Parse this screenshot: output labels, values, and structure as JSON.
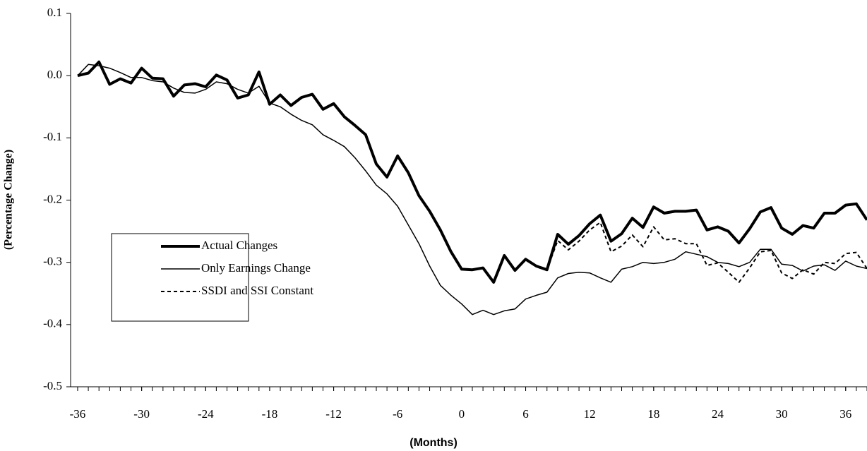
{
  "chart_data": {
    "type": "line",
    "xlabel": "(Months)",
    "ylabel": "(Percentage Change)",
    "x": [
      -36,
      -35,
      -34,
      -33,
      -32,
      -31,
      -30,
      -29,
      -28,
      -27,
      -26,
      -25,
      -24,
      -23,
      -22,
      -21,
      -20,
      -19,
      -18,
      -17,
      -16,
      -15,
      -14,
      -13,
      -12,
      -11,
      -10,
      -9,
      -8,
      -7,
      -6,
      -5,
      -4,
      -3,
      -2,
      -1,
      0,
      1,
      2,
      3,
      4,
      5,
      6,
      7,
      8,
      9,
      10,
      11,
      12,
      13,
      14,
      15,
      16,
      17,
      18,
      19,
      20,
      21,
      22,
      23,
      24,
      25,
      26,
      27,
      28,
      29,
      30,
      31,
      32,
      33,
      34,
      35,
      36,
      37,
      38
    ],
    "series": [
      {
        "name": "Actual Changes",
        "color": "#000000",
        "width": 4,
        "dash": false,
        "values": [
          0.0,
          0.004,
          0.022,
          -0.014,
          -0.005,
          -0.012,
          0.012,
          -0.004,
          -0.005,
          -0.033,
          -0.015,
          -0.013,
          -0.018,
          0.001,
          -0.007,
          -0.036,
          -0.031,
          0.006,
          -0.046,
          -0.031,
          -0.048,
          -0.035,
          -0.03,
          -0.054,
          -0.045,
          -0.066,
          -0.08,
          -0.095,
          -0.142,
          -0.163,
          -0.129,
          -0.156,
          -0.193,
          -0.218,
          -0.248,
          -0.283,
          -0.311,
          -0.312,
          -0.309,
          -0.332,
          -0.289,
          -0.313,
          -0.295,
          -0.306,
          -0.312,
          -0.255,
          -0.271,
          -0.257,
          -0.238,
          -0.224,
          -0.266,
          -0.254,
          -0.229,
          -0.244,
          -0.211,
          -0.221,
          -0.218,
          -0.218,
          -0.216,
          -0.248,
          -0.243,
          -0.25,
          -0.269,
          -0.246,
          -0.219,
          -0.212,
          -0.245,
          -0.255,
          -0.241,
          -0.245,
          -0.221,
          -0.221,
          -0.208,
          -0.206,
          -0.232
        ]
      },
      {
        "name": "Only Earnings Change",
        "color": "#000000",
        "width": 1.5,
        "dash": false,
        "values": [
          0.0,
          0.018,
          0.016,
          0.012,
          0.005,
          -0.003,
          -0.003,
          -0.008,
          -0.01,
          -0.02,
          -0.027,
          -0.028,
          -0.022,
          -0.01,
          -0.013,
          -0.022,
          -0.028,
          -0.017,
          -0.044,
          -0.05,
          -0.062,
          -0.072,
          -0.079,
          -0.095,
          -0.104,
          -0.114,
          -0.132,
          -0.153,
          -0.176,
          -0.19,
          -0.21,
          -0.24,
          -0.27,
          -0.306,
          -0.337,
          -0.353,
          -0.367,
          -0.384,
          -0.377,
          -0.384,
          -0.378,
          -0.375,
          -0.359,
          -0.353,
          -0.348,
          -0.325,
          -0.318,
          -0.316,
          -0.317,
          -0.325,
          -0.332,
          -0.311,
          -0.307,
          -0.3,
          -0.302,
          -0.3,
          -0.295,
          -0.283,
          -0.287,
          -0.291,
          -0.3,
          -0.302,
          -0.307,
          -0.3,
          -0.279,
          -0.279,
          -0.303,
          -0.305,
          -0.314,
          -0.306,
          -0.304,
          -0.313,
          -0.298,
          -0.306,
          -0.31
        ]
      },
      {
        "name": "SSDI and SSI Constant",
        "color": "#000000",
        "width": 2,
        "dash": true,
        "values": [
          null,
          null,
          null,
          null,
          null,
          null,
          null,
          null,
          null,
          null,
          null,
          null,
          null,
          null,
          null,
          null,
          null,
          null,
          null,
          null,
          null,
          null,
          null,
          null,
          null,
          null,
          null,
          null,
          null,
          null,
          null,
          null,
          null,
          null,
          null,
          null,
          null,
          null,
          null,
          null,
          null,
          null,
          null,
          null,
          -0.312,
          -0.265,
          -0.28,
          -0.266,
          -0.248,
          -0.236,
          -0.283,
          -0.274,
          -0.256,
          -0.275,
          -0.243,
          -0.264,
          -0.262,
          -0.27,
          -0.27,
          -0.305,
          -0.301,
          -0.316,
          -0.332,
          -0.309,
          -0.283,
          -0.281,
          -0.317,
          -0.326,
          -0.312,
          -0.319,
          -0.3,
          -0.302,
          -0.286,
          -0.284,
          -0.31
        ]
      }
    ],
    "xlim": [
      -36.66,
      38.0
    ],
    "xticks": [
      -36,
      -30,
      -24,
      -18,
      -12,
      -6,
      0,
      6,
      12,
      18,
      24,
      30,
      36
    ],
    "ylim": [
      -0.5,
      0.1
    ],
    "yticks": [
      0.1,
      {
        "value": 0,
        "label": "0.0"
      },
      -0.1,
      -0.2,
      -0.3,
      -0.4,
      -0.5
    ],
    "grid": false,
    "legend": "lower left"
  }
}
